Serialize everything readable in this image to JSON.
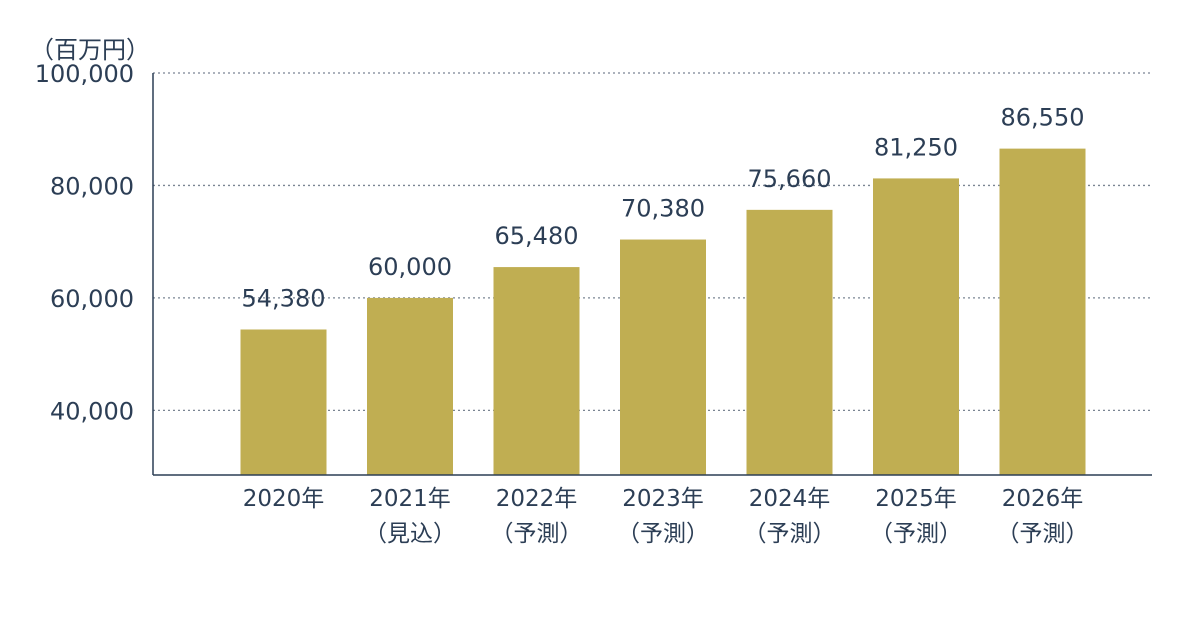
{
  "chart_data": {
    "type": "bar",
    "unit_label": "（百万円）",
    "categories": [
      [
        "2020年"
      ],
      [
        "2021年",
        "（見込）"
      ],
      [
        "2022年",
        "（予測）"
      ],
      [
        "2023年",
        "（予測）"
      ],
      [
        "2024年",
        "（予測）"
      ],
      [
        "2025年",
        "（予測）"
      ],
      [
        "2026年",
        "（予測）"
      ]
    ],
    "values": [
      54380,
      60000,
      65480,
      70380,
      75660,
      81250,
      86550
    ],
    "value_labels": [
      "54,380",
      "60,000",
      "65,480",
      "70,380",
      "75,660",
      "81,250",
      "86,550"
    ],
    "yticks": [
      40000,
      60000,
      80000,
      100000
    ],
    "ytick_labels": [
      "40,000",
      "60,000",
      "80,000",
      "100,000"
    ],
    "ylim": [
      28500,
      100000
    ],
    "grid": true,
    "bar_color": "#c0ae52",
    "axis_color": "#2c3e55",
    "grid_color": "#7a8593"
  }
}
